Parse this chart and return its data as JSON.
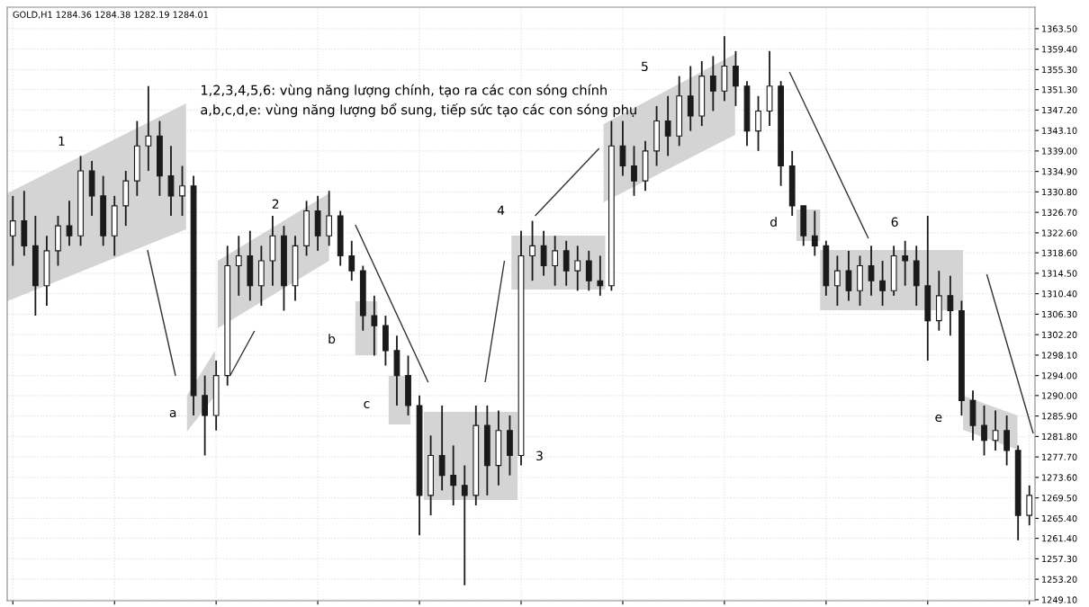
{
  "chart_data": {
    "type": "candlestick",
    "title": "GOLD,H1 1284.36 1284.38 1282.19 1284.01",
    "categories": [
      null,
      null,
      null,
      null,
      null,
      null,
      null,
      null,
      null,
      null,
      null,
      null,
      null,
      null,
      null,
      null,
      null,
      null,
      null,
      null,
      null,
      null,
      null,
      null,
      null,
      null,
      null,
      null,
      null,
      null,
      null,
      null,
      null,
      null,
      null,
      null,
      null,
      null,
      null,
      null,
      null,
      null,
      null,
      null,
      null,
      null,
      null,
      null,
      null,
      null,
      null,
      null,
      null,
      null,
      null,
      null,
      null,
      null,
      null,
      null,
      null,
      null,
      null,
      null,
      null,
      null,
      null,
      null,
      null,
      null,
      null,
      null,
      null,
      null,
      null,
      null,
      null,
      null,
      null,
      null,
      null,
      null,
      null,
      null,
      null,
      null,
      null,
      null,
      null,
      null,
      null
    ],
    "ohlc": [
      [
        1322,
        1330,
        1316,
        1325
      ],
      [
        1325,
        1331,
        1318,
        1320
      ],
      [
        1320,
        1326,
        1306,
        1312
      ],
      [
        1312,
        1322,
        1308,
        1319
      ],
      [
        1319,
        1326,
        1316,
        1324
      ],
      [
        1324,
        1329,
        1320,
        1322
      ],
      [
        1322,
        1338,
        1320,
        1335
      ],
      [
        1335,
        1337,
        1326,
        1330
      ],
      [
        1330,
        1334,
        1320,
        1322
      ],
      [
        1322,
        1330,
        1318,
        1328
      ],
      [
        1328,
        1335,
        1324,
        1333
      ],
      [
        1333,
        1345,
        1330,
        1340
      ],
      [
        1340,
        1352,
        1335,
        1342
      ],
      [
        1342,
        1345,
        1330,
        1334
      ],
      [
        1334,
        1340,
        1326,
        1330
      ],
      [
        1330,
        1336,
        1326,
        1332
      ],
      [
        1332,
        1334,
        1286,
        1290
      ],
      [
        1290,
        1294,
        1278,
        1286
      ],
      [
        1286,
        1297,
        1283,
        1294
      ],
      [
        1294,
        1320,
        1292,
        1316
      ],
      [
        1316,
        1322,
        1310,
        1318
      ],
      [
        1318,
        1323,
        1309,
        1312
      ],
      [
        1312,
        1320,
        1308,
        1317
      ],
      [
        1317,
        1326,
        1312,
        1322
      ],
      [
        1322,
        1324,
        1307,
        1312
      ],
      [
        1312,
        1322,
        1309,
        1320
      ],
      [
        1320,
        1329,
        1318,
        1327
      ],
      [
        1327,
        1330,
        1319,
        1322
      ],
      [
        1322,
        1331,
        1320,
        1326
      ],
      [
        1326,
        1327,
        1316,
        1318
      ],
      [
        1318,
        1321,
        1313,
        1315
      ],
      [
        1315,
        1316,
        1303,
        1306
      ],
      [
        1306,
        1310,
        1298,
        1304
      ],
      [
        1304,
        1306,
        1296,
        1299
      ],
      [
        1299,
        1302,
        1288,
        1294
      ],
      [
        1294,
        1298,
        1286,
        1288
      ],
      [
        1288,
        1290,
        1262,
        1270
      ],
      [
        1270,
        1282,
        1266,
        1278
      ],
      [
        1278,
        1288,
        1271,
        1274
      ],
      [
        1274,
        1280,
        1268,
        1272
      ],
      [
        1272,
        1276,
        1252,
        1270
      ],
      [
        1270,
        1288,
        1268,
        1284
      ],
      [
        1284,
        1288,
        1270,
        1276
      ],
      [
        1276,
        1287,
        1272,
        1283
      ],
      [
        1283,
        1286,
        1274,
        1278
      ],
      [
        1278,
        1323,
        1276,
        1318
      ],
      [
        1318,
        1325,
        1313,
        1320
      ],
      [
        1320,
        1323,
        1314,
        1316
      ],
      [
        1316,
        1322,
        1312,
        1319
      ],
      [
        1319,
        1321,
        1312,
        1315
      ],
      [
        1315,
        1320,
        1311,
        1317
      ],
      [
        1317,
        1319,
        1311,
        1313
      ],
      [
        1313,
        1318,
        1310,
        1312
      ],
      [
        1312,
        1345,
        1311,
        1340
      ],
      [
        1340,
        1345,
        1334,
        1336
      ],
      [
        1336,
        1340,
        1330,
        1333
      ],
      [
        1333,
        1341,
        1331,
        1339
      ],
      [
        1339,
        1348,
        1336,
        1345
      ],
      [
        1345,
        1350,
        1338,
        1342
      ],
      [
        1342,
        1354,
        1340,
        1350
      ],
      [
        1350,
        1356,
        1343,
        1346
      ],
      [
        1346,
        1357,
        1344,
        1354
      ],
      [
        1354,
        1358,
        1347,
        1351
      ],
      [
        1351,
        1362,
        1349,
        1356
      ],
      [
        1356,
        1359,
        1348,
        1352
      ],
      [
        1352,
        1353,
        1340,
        1343
      ],
      [
        1343,
        1350,
        1339,
        1347
      ],
      [
        1347,
        1359,
        1344,
        1352
      ],
      [
        1352,
        1353,
        1332,
        1336
      ],
      [
        1336,
        1339,
        1326,
        1328
      ],
      [
        1328,
        1328,
        1320,
        1322
      ],
      [
        1322,
        1327,
        1318,
        1320
      ],
      [
        1320,
        1321,
        1310,
        1312
      ],
      [
        1312,
        1318,
        1308,
        1315
      ],
      [
        1315,
        1319,
        1309,
        1311
      ],
      [
        1311,
        1318,
        1308,
        1316
      ],
      [
        1316,
        1320,
        1310,
        1313
      ],
      [
        1313,
        1317,
        1308,
        1311
      ],
      [
        1311,
        1320,
        1310,
        1318
      ],
      [
        1318,
        1321,
        1312,
        1317
      ],
      [
        1317,
        1320,
        1308,
        1312
      ],
      [
        1312,
        1326,
        1297,
        1305
      ],
      [
        1305,
        1315,
        1303,
        1310
      ],
      [
        1310,
        1314,
        1302,
        1307
      ],
      [
        1307,
        1309,
        1286,
        1289
      ],
      [
        1289,
        1291,
        1281,
        1284
      ],
      [
        1284,
        1288,
        1278,
        1281
      ],
      [
        1281,
        1287,
        1279,
        1283
      ],
      [
        1283,
        1286,
        1276,
        1279
      ],
      [
        1279,
        1280,
        1261,
        1266
      ],
      [
        1266,
        1272,
        1264,
        1270
      ]
    ],
    "color": "#1a1a1a",
    "ylim": [
      1248.9,
      1367.8
    ],
    "yticks": [
      {
        "value": 1249.1,
        "label": "1249.10"
      },
      {
        "value": 1253.2,
        "label": "1253.20"
      },
      {
        "value": 1257.3,
        "label": "1257.30"
      },
      {
        "value": 1261.4,
        "label": "1261.40"
      },
      {
        "value": 1265.4,
        "label": "1265.40"
      },
      {
        "value": 1269.5,
        "label": "1269.50"
      },
      {
        "value": 1273.6,
        "label": "1273.60"
      },
      {
        "value": 1277.7,
        "label": "1277.70"
      },
      {
        "value": 1281.8,
        "label": "1281.80"
      },
      {
        "value": 1285.9,
        "label": "1285.90"
      },
      {
        "value": 1290.0,
        "label": "1290.00"
      },
      {
        "value": 1294.0,
        "label": "1294.00"
      },
      {
        "value": 1298.1,
        "label": "1298.10"
      },
      {
        "value": 1302.2,
        "label": "1302.20"
      },
      {
        "value": 1306.3,
        "label": "1306.30"
      },
      {
        "value": 1310.4,
        "label": "1310.40"
      },
      {
        "value": 1314.5,
        "label": "1314.50"
      },
      {
        "value": 1318.6,
        "label": "1318.60"
      },
      {
        "value": 1322.6,
        "label": "1322.60"
      },
      {
        "value": 1326.7,
        "label": "1326.70"
      },
      {
        "value": 1330.8,
        "label": "1330.80"
      },
      {
        "value": 1334.9,
        "label": "1334.90"
      },
      {
        "value": 1339.0,
        "label": "1339.00"
      },
      {
        "value": 1343.1,
        "label": "1343.10"
      },
      {
        "value": 1347.2,
        "label": "1347.20"
      },
      {
        "value": 1351.3,
        "label": "1351.30"
      },
      {
        "value": 1355.3,
        "label": "1355.30"
      },
      {
        "value": 1359.4,
        "label": "1359.40"
      },
      {
        "value": 1363.5,
        "label": "1363.50"
      }
    ],
    "tick_labels": "y",
    "grid": true,
    "annotations": [
      "1,2,3,4,5,6: vùng năng lượng chính, tạo ra các con sóng chính\na,b,c,d,e: vùng năng lượng bổ sung, tiếp sức tạo các con sóng phụ",
      "1",
      "2",
      "3",
      "4",
      "5",
      "6",
      "a",
      "b",
      "c",
      "d",
      "e"
    ]
  }
}
